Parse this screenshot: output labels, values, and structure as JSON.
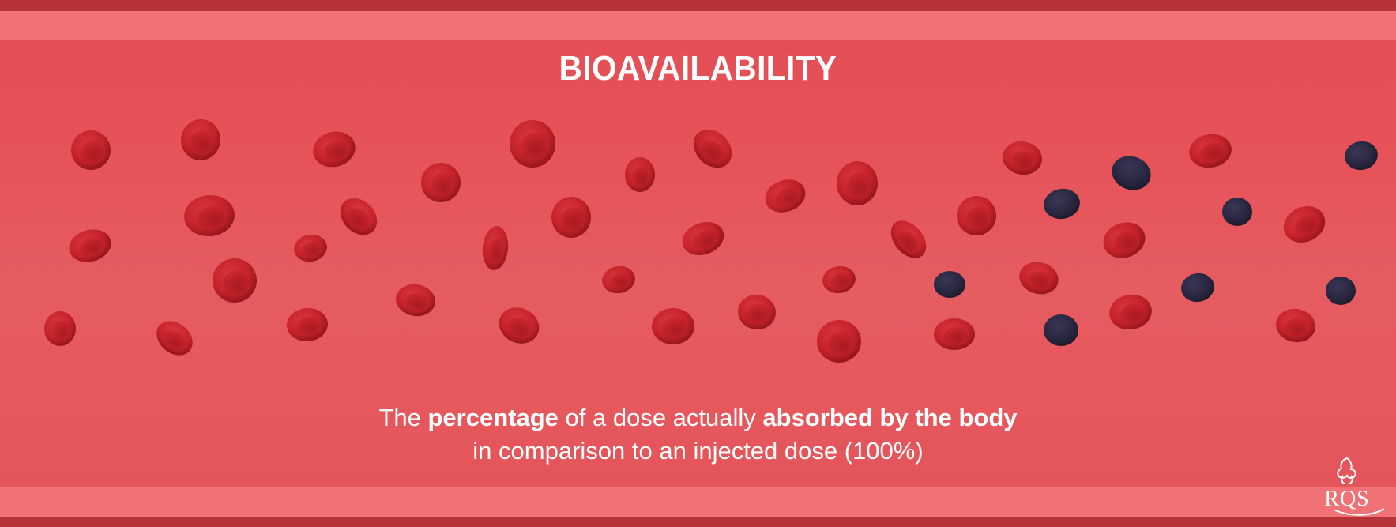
{
  "title": "BIOAVAILABILITY",
  "caption": {
    "line1": {
      "p1": "The ",
      "b1": "percentage",
      "p2": " of a dose actually ",
      "b2": "absorbed by the body"
    },
    "line2": "in comparison to an injected dose (100%)"
  },
  "logo": {
    "text": "RQS"
  },
  "colors": {
    "border": "#b63337",
    "band": "#f07276",
    "vessel": "#e6545a",
    "red_cell": "#c9242c",
    "dark_cell": "#2d2a45",
    "text": "#ffffff"
  }
}
